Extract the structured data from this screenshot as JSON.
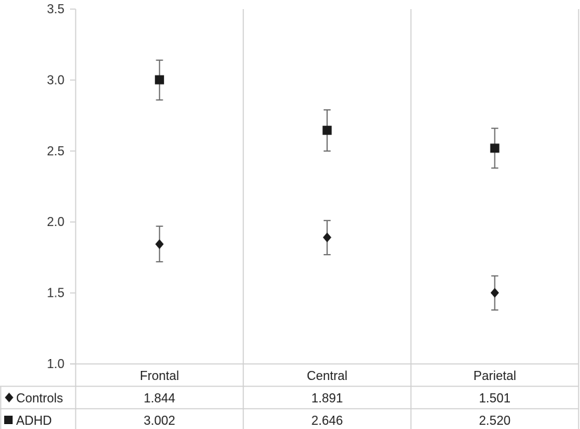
{
  "chart_data": {
    "type": "scatter",
    "categories": [
      "Frontal",
      "Central",
      "Parietal"
    ],
    "ylim": [
      1.0,
      3.5
    ],
    "yticks": [
      "1.0",
      "1.5",
      "2.0",
      "2.5",
      "3.0",
      "3.5"
    ],
    "grid": "vertical category separators",
    "series": [
      {
        "name": "Controls",
        "marker": "diamond",
        "color": "#1a1a1a",
        "values": [
          1.844,
          1.891,
          1.501
        ],
        "error_low": [
          1.72,
          1.77,
          1.38
        ],
        "error_high": [
          1.97,
          2.01,
          1.62
        ]
      },
      {
        "name": "ADHD",
        "marker": "square",
        "color": "#1a1a1a",
        "values": [
          3.002,
          2.646,
          2.52
        ],
        "error_low": [
          2.86,
          2.5,
          2.38
        ],
        "error_high": [
          3.14,
          2.79,
          2.66
        ]
      }
    ],
    "table": {
      "rows": [
        {
          "label": "Controls",
          "cells": [
            "1.844",
            "1.891",
            "1.501"
          ]
        },
        {
          "label": "ADHD",
          "cells": [
            "3.002",
            "2.646",
            "2.520"
          ]
        }
      ]
    }
  }
}
